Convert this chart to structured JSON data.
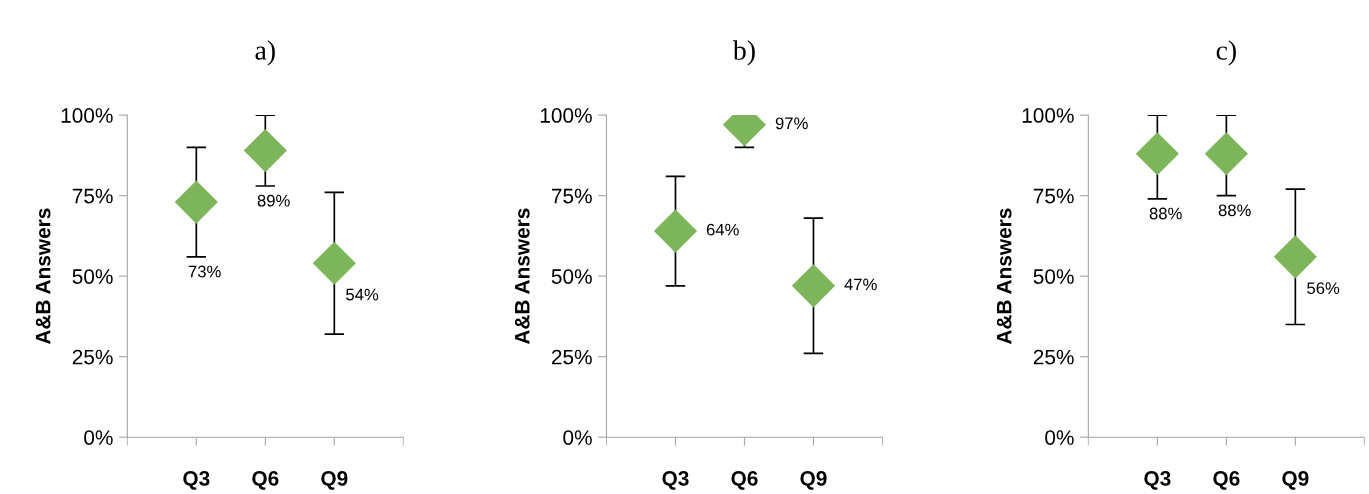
{
  "chart_data": [
    {
      "type": "scatter",
      "title": "a)",
      "ylabel": "A&B Answers",
      "categories": [
        "Q3",
        "Q6",
        "Q9"
      ],
      "values": [
        73,
        89,
        54
      ],
      "errors": [
        [
          56,
          90
        ],
        [
          78,
          100
        ],
        [
          32,
          76
        ]
      ],
      "color": "#7db65a",
      "marker": "diamond",
      "data_labels": true,
      "value_labels": [
        "73%",
        "89%",
        "54%"
      ],
      "ylim": [
        0,
        100
      ],
      "yticks": [
        {
          "value": 0,
          "label": "0%"
        },
        {
          "value": 25,
          "label": "25%"
        },
        {
          "value": 50,
          "label": "50%"
        },
        {
          "value": 75,
          "label": "75%"
        },
        {
          "value": 100,
          "label": "100%"
        }
      ],
      "grid": false
    },
    {
      "type": "scatter",
      "title": "b)",
      "ylabel": "A&B Answers",
      "categories": [
        "Q3",
        "Q6",
        "Q9"
      ],
      "values": [
        64,
        97,
        47
      ],
      "errors": [
        [
          47,
          81
        ],
        [
          90,
          100
        ],
        [
          26,
          68
        ]
      ],
      "color": "#7db65a",
      "marker": "diamond",
      "data_labels": true,
      "value_labels": [
        "64%",
        "97%",
        "47%"
      ],
      "ylim": [
        0,
        100
      ],
      "yticks": [
        {
          "value": 0,
          "label": "0%"
        },
        {
          "value": 25,
          "label": "25%"
        },
        {
          "value": 50,
          "label": "50%"
        },
        {
          "value": 75,
          "label": "75%"
        },
        {
          "value": 100,
          "label": "100%"
        }
      ],
      "grid": false
    },
    {
      "type": "scatter",
      "title": "c)",
      "ylabel": "A&B Answers",
      "categories": [
        "Q3",
        "Q6",
        "Q9"
      ],
      "values": [
        88,
        88,
        56
      ],
      "errors": [
        [
          74,
          100
        ],
        [
          75,
          100
        ],
        [
          35,
          77
        ]
      ],
      "color": "#7db65a",
      "marker": "diamond",
      "data_labels": true,
      "value_labels": [
        "88%",
        "88%",
        "56%"
      ],
      "ylim": [
        0,
        100
      ],
      "yticks": [
        {
          "value": 0,
          "label": "0%"
        },
        {
          "value": 25,
          "label": "25%"
        },
        {
          "value": 50,
          "label": "50%"
        },
        {
          "value": 75,
          "label": "75%"
        },
        {
          "value": 100,
          "label": "100%"
        }
      ],
      "grid": false
    }
  ]
}
